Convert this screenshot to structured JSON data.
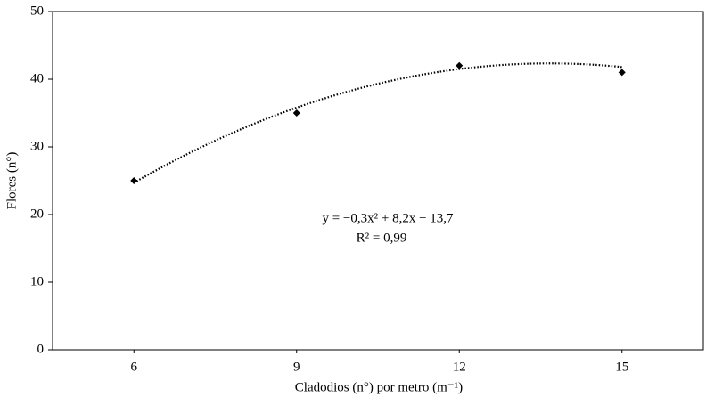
{
  "chart_data": {
    "type": "scatter",
    "xlabel": "Cladodios (n°) por metro (m⁻¹)",
    "ylabel": "Flores (n°)",
    "x": [
      6,
      9,
      12,
      15
    ],
    "values": [
      25,
      35,
      42,
      41
    ],
    "color": "#000000",
    "xlim": [
      4.5,
      16.5
    ],
    "xticks": [
      6,
      9,
      12,
      15
    ],
    "ylim": [
      0,
      50
    ],
    "yticks": [
      0,
      10,
      20,
      30,
      40,
      50
    ],
    "grid": false,
    "trendline": {
      "equation": "y = −0,3x² + 8,2x − 13,7",
      "r2": "R² = 0,99",
      "coefficients": [
        -0.3,
        8.2,
        -13.7
      ]
    }
  }
}
